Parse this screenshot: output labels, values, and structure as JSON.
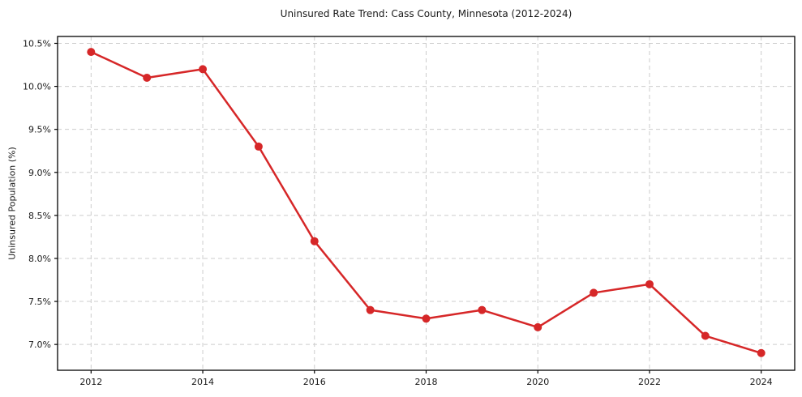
{
  "figure": {
    "background": "#ffffff"
  },
  "chart_data": {
    "type": "line",
    "title": "Uninsured Rate Trend: Cass County, Minnesota (2012-2024)",
    "xlabel": "",
    "ylabel": "Uninsured Population (%)",
    "x": [
      2012,
      2013,
      2014,
      2015,
      2016,
      2017,
      2018,
      2019,
      2020,
      2021,
      2022,
      2023,
      2024
    ],
    "values": [
      10.4,
      10.1,
      10.2,
      9.3,
      8.2,
      7.4,
      7.3,
      7.4,
      7.2,
      7.6,
      7.7,
      7.1,
      6.9
    ],
    "xlim": [
      2011.4,
      2024.6
    ],
    "ylim": [
      6.7,
      10.58
    ],
    "xticks": [
      2012,
      2014,
      2016,
      2018,
      2020,
      2022,
      2024
    ],
    "xtick_labels": [
      "2012",
      "2014",
      "2016",
      "2018",
      "2020",
      "2022",
      "2024"
    ],
    "yticks": [
      7.0,
      7.5,
      8.0,
      8.5,
      9.0,
      9.5,
      10.0,
      10.5
    ],
    "ytick_labels": [
      "7.0%",
      "7.5%",
      "8.0%",
      "8.5%",
      "9.0%",
      "9.5%",
      "10.0%",
      "10.5%"
    ],
    "grid": true,
    "grid_style": "dashed",
    "legend": false,
    "line_color": "#d62728",
    "marker": "o",
    "grid_color": "#cccccc",
    "axis_color": "#000000",
    "text_color": "#1a1a1a"
  }
}
